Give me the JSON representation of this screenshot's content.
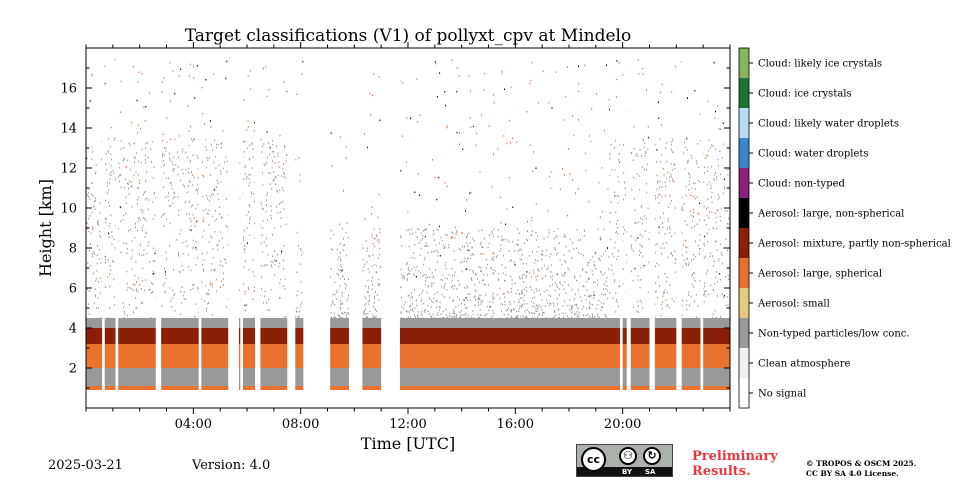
{
  "chart_data": {
    "type": "heatmap",
    "title": "Target classifications (V1) of pollyxt_cpv at Mindelo",
    "xlabel": "Time [UTC]",
    "ylabel": "Height [km]",
    "xlim": [
      0,
      24
    ],
    "ylim": [
      0,
      18
    ],
    "x_ticks": [
      {
        "value": 4,
        "label": "04:00"
      },
      {
        "value": 8,
        "label": "08:00"
      },
      {
        "value": 12,
        "label": "12:00"
      },
      {
        "value": 16,
        "label": "16:00"
      },
      {
        "value": 20,
        "label": "20:00"
      }
    ],
    "y_ticks": [
      {
        "value": 2,
        "label": "2"
      },
      {
        "value": 4,
        "label": "4"
      },
      {
        "value": 6,
        "label": "6"
      },
      {
        "value": 8,
        "label": "8"
      },
      {
        "value": 10,
        "label": "10"
      },
      {
        "value": 12,
        "label": "12"
      },
      {
        "value": 14,
        "label": "14"
      },
      {
        "value": 16,
        "label": "16"
      }
    ],
    "classes": [
      {
        "label": "No signal",
        "color": "#ffffff"
      },
      {
        "label": "Clean atmosphere",
        "color": "#f1f1f1"
      },
      {
        "label": "Non-typed particles/low conc.",
        "color": "#999999"
      },
      {
        "label": "Aerosol: small",
        "color": "#e4c97a"
      },
      {
        "label": "Aerosol: large, spherical",
        "color": "#e8722e"
      },
      {
        "label": "Aerosol: mixture, partly non-spherical",
        "color": "#8c2006"
      },
      {
        "label": "Aerosol: large, non-spherical",
        "color": "#000000"
      },
      {
        "label": "Cloud: non-typed",
        "color": "#8a2080"
      },
      {
        "label": "Cloud: water droplets",
        "color": "#3a88c8"
      },
      {
        "label": "Cloud: likely water droplets",
        "color": "#b7dbf4"
      },
      {
        "label": "Cloud: ice crystals",
        "color": "#1a7436"
      },
      {
        "label": "Cloud: likely ice crystals",
        "color": "#86b35c"
      }
    ],
    "layers": [
      {
        "class": "Aerosol: large, spherical",
        "from_km": 0.9,
        "to_km": 1.1
      },
      {
        "class": "Non-typed particles/low conc.",
        "from_km": 1.1,
        "to_km": 2.0
      },
      {
        "class": "Aerosol: large, spherical",
        "from_km": 2.0,
        "to_km": 3.2
      },
      {
        "class": "Aerosol: mixture, partly non-spherical",
        "from_km": 3.2,
        "to_km": 4.0
      },
      {
        "class": "Non-typed particles/low conc.",
        "from_km": 4.0,
        "to_km": 4.5
      }
    ],
    "data_gaps_hours": [
      [
        0.6,
        0.7
      ],
      [
        1.1,
        1.2
      ],
      [
        2.6,
        2.8
      ],
      [
        4.2,
        4.3
      ],
      [
        5.3,
        5.7
      ],
      [
        5.75,
        5.85
      ],
      [
        6.3,
        6.5
      ],
      [
        7.5,
        7.8
      ],
      [
        8.1,
        9.1
      ],
      [
        9.8,
        10.3
      ],
      [
        11.0,
        11.7
      ],
      [
        19.9,
        20.0
      ],
      [
        20.15,
        20.3
      ],
      [
        21.0,
        21.2
      ],
      [
        22.0,
        22.2
      ],
      [
        22.9,
        23.0
      ]
    ]
  },
  "footer": {
    "date": "2025-03-21",
    "version": "Version: 4.0",
    "cc_text": "cc",
    "cc_by": "BY",
    "cc_sa": "SA",
    "preliminary_line1": "Preliminary",
    "preliminary_line2": "Results.",
    "license_line1": "© TROPOS & OSCM 2025.",
    "license_line2": "CC BY SA 4.0 License."
  }
}
